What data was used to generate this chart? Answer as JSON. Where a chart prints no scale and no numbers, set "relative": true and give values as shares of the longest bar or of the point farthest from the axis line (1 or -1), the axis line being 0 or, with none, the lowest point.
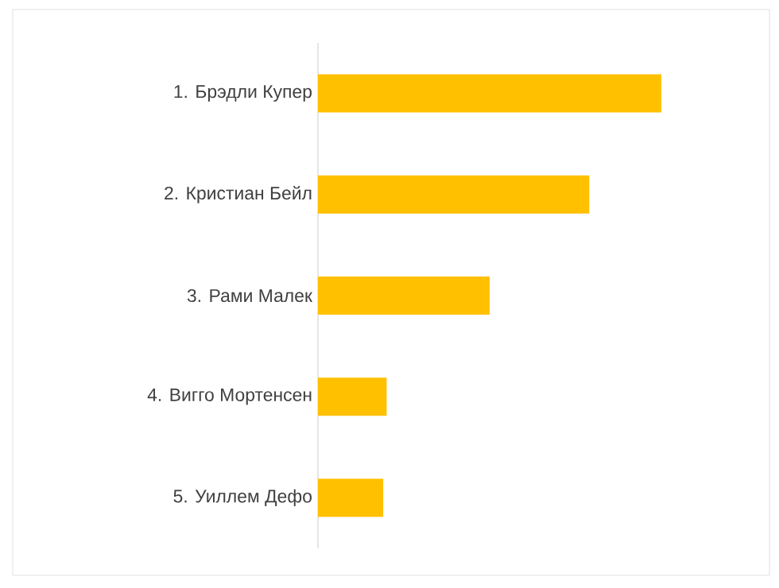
{
  "chart_data": {
    "type": "bar",
    "orientation": "horizontal",
    "relative": true,
    "categories": [
      "1. Брэдли Купер",
      "2. Кристиан Бейл",
      "3. Рами Малек",
      "4. Вигго Мортенсен",
      "5. Уиллем Дефо"
    ],
    "values": [
      1,
      0.79,
      0.5,
      0.2,
      0.19
    ],
    "color": "#ffc000"
  }
}
